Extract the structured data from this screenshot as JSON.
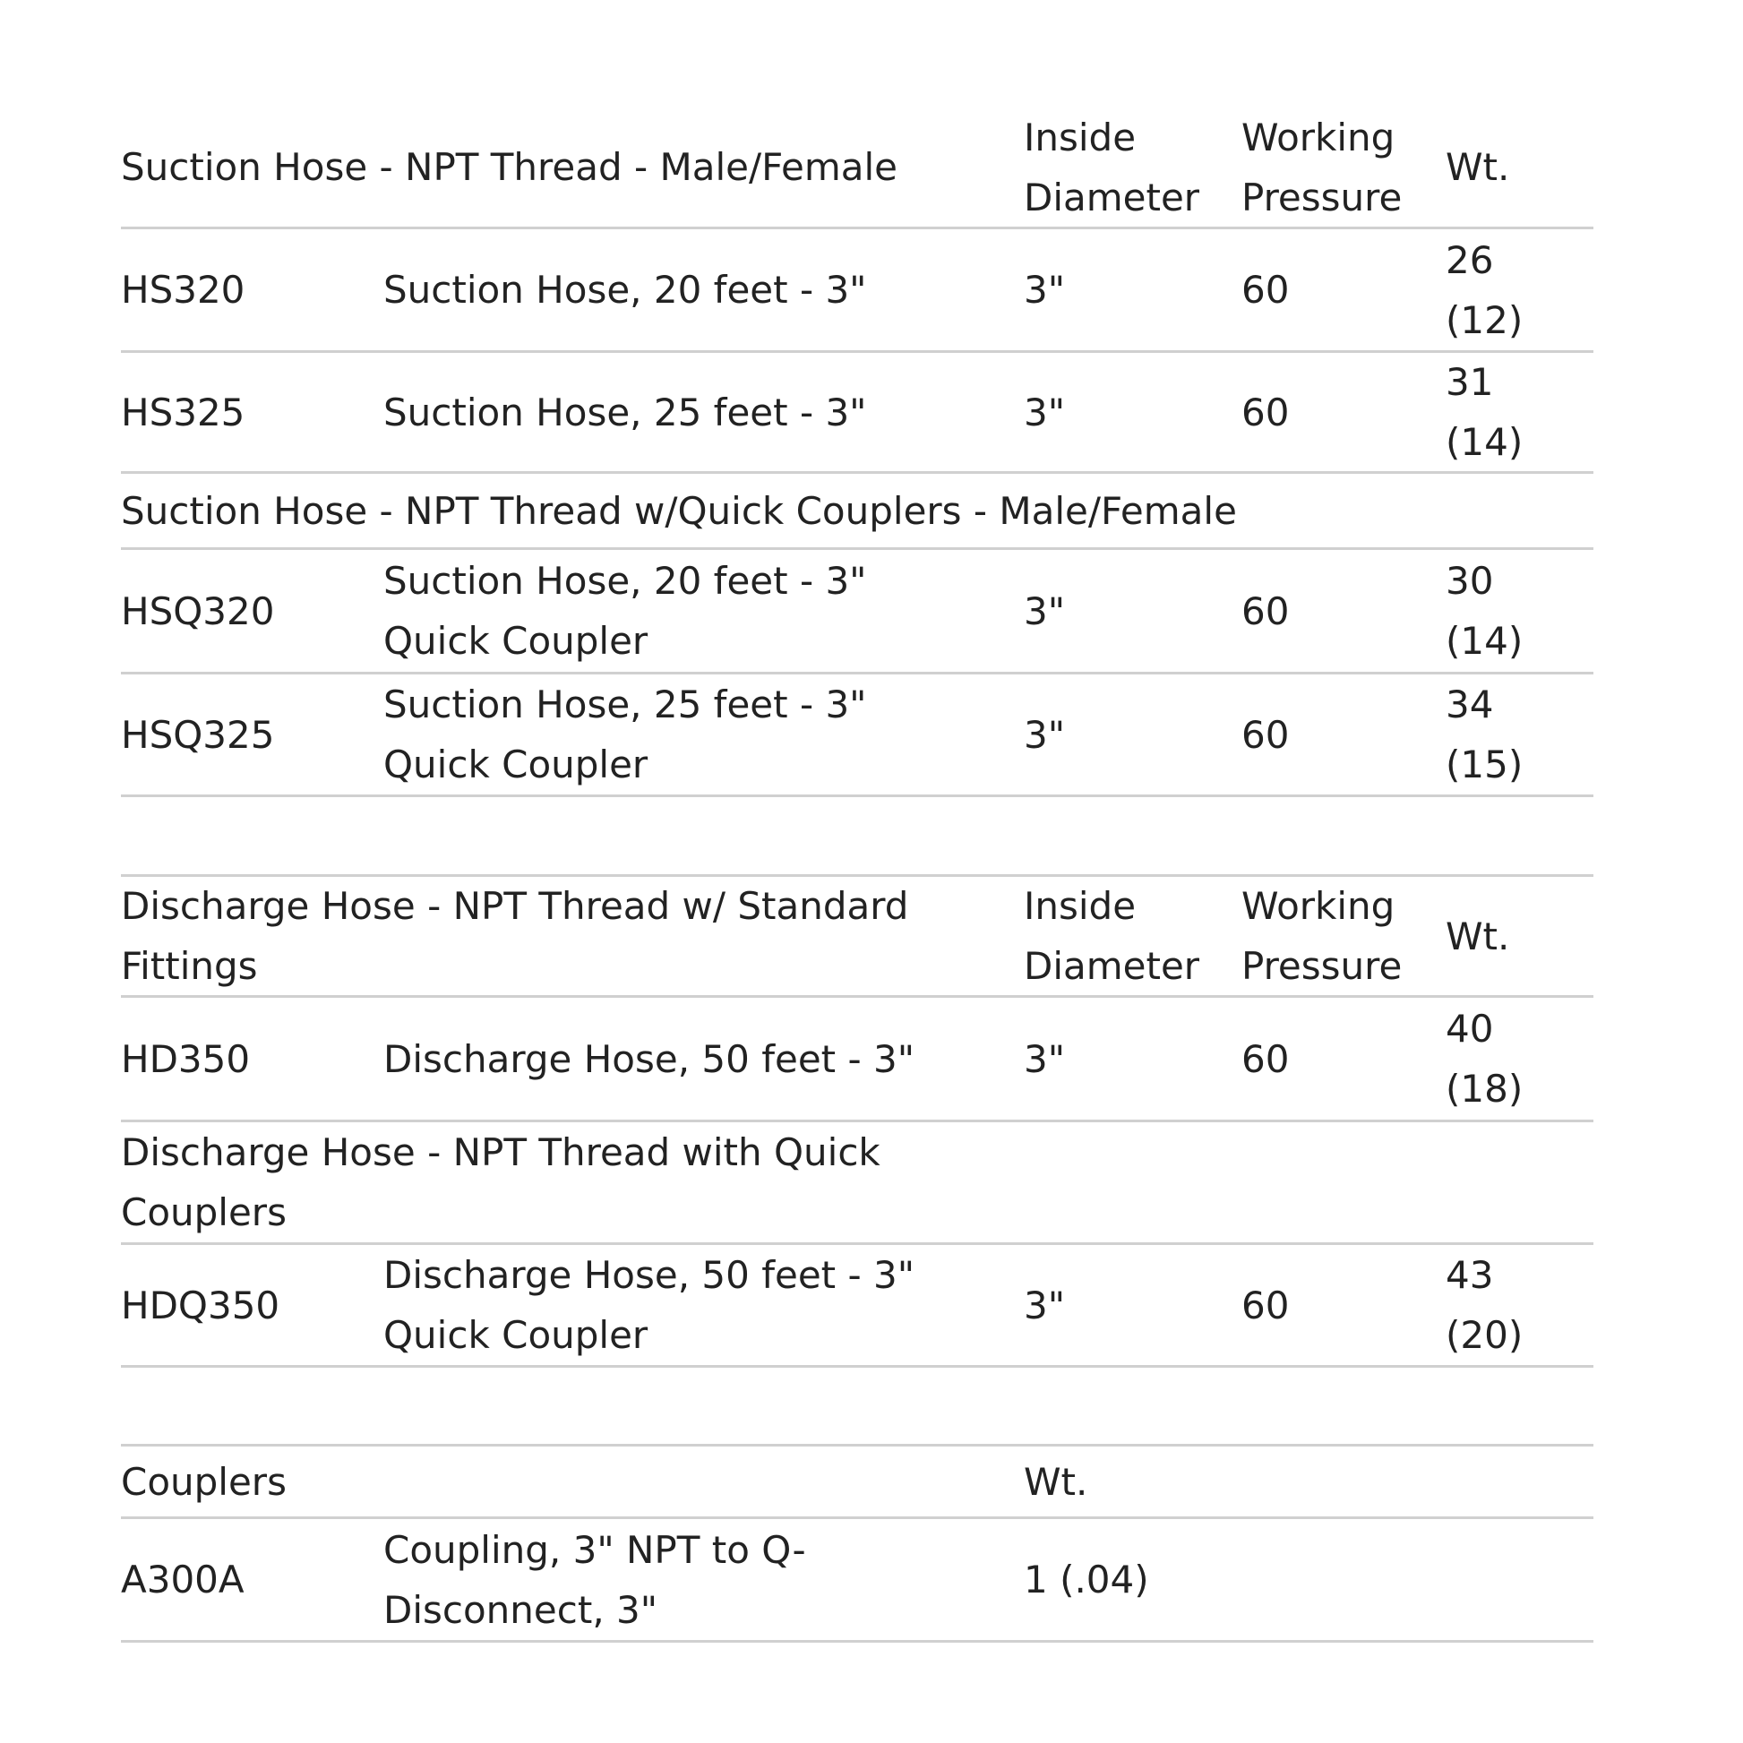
{
  "tables": [
    {
      "header": {
        "title": "Suction Hose - NPT Thread - Male/Female",
        "col_id": "Inside\nDiameter",
        "col_wp": "Working\nPressure",
        "col_wt": "Wt."
      },
      "rows": [
        {
          "type": "item",
          "part": "HS320",
          "desc": "Suction Hose, 20 feet - 3\"",
          "id": "3\"",
          "wp": "60",
          "wt": "26\n(12)"
        },
        {
          "type": "item",
          "part": "HS325",
          "desc": "Suction Hose, 25 feet - 3\"",
          "id": "3\"",
          "wp": "60",
          "wt": "31\n(14)"
        },
        {
          "type": "section",
          "title": "Suction Hose - NPT Thread w/Quick Couplers - Male/Female"
        },
        {
          "type": "item",
          "part": "HSQ320",
          "desc": "Suction Hose, 20 feet - 3\"\nQuick Coupler",
          "id": "3\"",
          "wp": "60",
          "wt": "30\n(14)"
        },
        {
          "type": "item",
          "part": "HSQ325",
          "desc": "Suction Hose, 25 feet - 3\"\nQuick Coupler",
          "id": "3\"",
          "wp": "60",
          "wt": "34\n(15)"
        }
      ]
    },
    {
      "header": {
        "title": "Discharge Hose - NPT Thread w/ Standard\nFittings",
        "col_id": "Inside\nDiameter",
        "col_wp": "Working\nPressure",
        "col_wt": "Wt."
      },
      "rows": [
        {
          "type": "item",
          "part": "HD350",
          "desc": "Discharge Hose, 50 feet - 3\"",
          "id": "3\"",
          "wp": "60",
          "wt": "40\n(18)"
        },
        {
          "type": "section",
          "title": "Discharge Hose - NPT Thread with Quick\nCouplers"
        },
        {
          "type": "item",
          "part": "HDQ350",
          "desc": "Discharge Hose, 50 feet - 3\"\nQuick Coupler",
          "id": "3\"",
          "wp": "60",
          "wt": "43\n(20)"
        }
      ]
    },
    {
      "header": {
        "title": "Couplers",
        "col_id": "Wt."
      },
      "rows": [
        {
          "type": "item",
          "part": "A300A",
          "desc": "Coupling, 3\" NPT to Q-\nDisconnect, 3\"",
          "id": "1 (.04)"
        }
      ]
    }
  ]
}
